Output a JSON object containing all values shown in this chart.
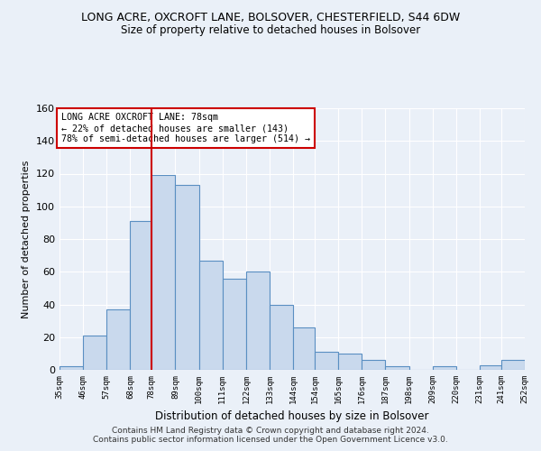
{
  "title": "LONG ACRE, OXCROFT LANE, BOLSOVER, CHESTERFIELD, S44 6DW",
  "subtitle": "Size of property relative to detached houses in Bolsover",
  "xlabel": "Distribution of detached houses by size in Bolsover",
  "ylabel": "Number of detached properties",
  "bar_edges": [
    35,
    46,
    57,
    68,
    78,
    89,
    100,
    111,
    122,
    133,
    144,
    154,
    165,
    176,
    187,
    198,
    209,
    220,
    231,
    241,
    252
  ],
  "bar_heights": [
    2,
    21,
    37,
    91,
    119,
    113,
    67,
    56,
    60,
    40,
    26,
    11,
    10,
    6,
    2,
    0,
    2,
    0,
    3,
    6
  ],
  "bar_color": "#c9d9ed",
  "bar_edge_color": "#5a8fc2",
  "property_value": 78,
  "vline_color": "#cc0000",
  "annotation_text": "LONG ACRE OXCROFT LANE: 78sqm\n← 22% of detached houses are smaller (143)\n78% of semi-detached houses are larger (514) →",
  "annotation_box_color": "#ffffff",
  "annotation_box_edge": "#cc0000",
  "ylim": [
    0,
    160
  ],
  "yticks": [
    0,
    20,
    40,
    60,
    80,
    100,
    120,
    140,
    160
  ],
  "tick_labels": [
    "35sqm",
    "46sqm",
    "57sqm",
    "68sqm",
    "78sqm",
    "89sqm",
    "100sqm",
    "111sqm",
    "122sqm",
    "133sqm",
    "144sqm",
    "154sqm",
    "165sqm",
    "176sqm",
    "187sqm",
    "198sqm",
    "209sqm",
    "220sqm",
    "231sqm",
    "241sqm",
    "252sqm"
  ],
  "footer": "Contains HM Land Registry data © Crown copyright and database right 2024.\nContains public sector information licensed under the Open Government Licence v3.0.",
  "background_color": "#eaf0f8",
  "grid_color": "#ffffff"
}
